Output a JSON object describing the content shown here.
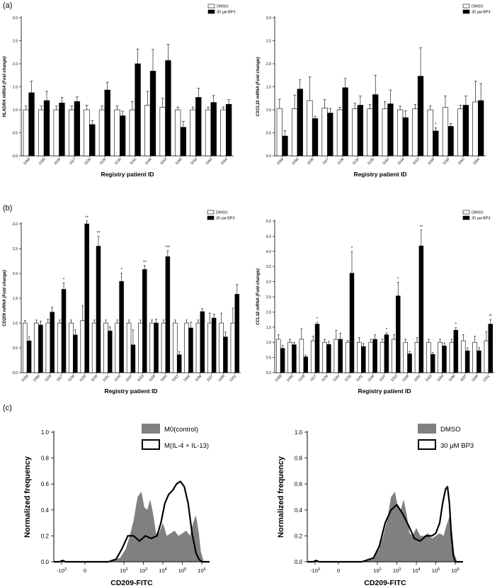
{
  "panel_labels": [
    "(a)",
    "(b)",
    "(c)"
  ],
  "chart_data": [
    {
      "type": "bar",
      "ylabel": "HLADRA mRNA (Fold change)",
      "xlabel": "Registry patient ID",
      "ylim": [
        0,
        3.0
      ],
      "yticks": [
        "0.0",
        "0.5",
        "1.0",
        "1.5",
        "2.0",
        "2.5",
        "3.0"
      ],
      "categories": [
        "1058",
        "1095",
        "1108",
        "1117",
        "1126",
        "1129",
        "1135",
        "1141",
        "1144",
        "1153",
        "1158",
        "1159",
        "1163",
        "1164"
      ],
      "series": [
        {
          "name": "DMSO",
          "color": "#ffffff",
          "values": [
            1.0,
            1.0,
            1.0,
            1.0,
            1.0,
            1.0,
            1.0,
            1.0,
            1.1,
            1.05,
            1.0,
            1.0,
            1.0,
            1.0
          ],
          "errors": [
            0.08,
            0.08,
            0.08,
            0.08,
            0.1,
            0.08,
            0.08,
            0.18,
            0.3,
            0.2,
            0.06,
            0.06,
            0.06,
            0.06
          ]
        },
        {
          "name": "30 μм BP3",
          "color": "#000000",
          "values": [
            1.37,
            1.2,
            1.15,
            1.18,
            0.68,
            1.43,
            0.87,
            2.0,
            1.84,
            2.07,
            0.62,
            1.27,
            1.16,
            1.12
          ],
          "errors": [
            0.25,
            0.2,
            0.12,
            0.1,
            0.08,
            0.17,
            0.1,
            0.32,
            0.47,
            0.35,
            0.13,
            0.2,
            0.15,
            0.1
          ]
        }
      ],
      "annotations": [],
      "legend": "top-right"
    },
    {
      "type": "bar",
      "ylabel": "CXCL10 mRNA (Fold change)",
      "xlabel": "Registry patient ID",
      "ylim": [
        0,
        3.0
      ],
      "yticks": [
        "0.0",
        "0.5",
        "1.0",
        "1.5",
        "2.0",
        "2.5",
        "3.0"
      ],
      "categories": [
        "1058",
        "1095",
        "1108",
        "1117",
        "1126",
        "1129",
        "1135",
        "1141",
        "1144",
        "1153",
        "1158",
        "1159",
        "1163",
        "1164"
      ],
      "series": [
        {
          "name": "DMSO",
          "color": "#ffffff",
          "values": [
            1.03,
            1.02,
            1.2,
            1.04,
            1.0,
            1.02,
            1.02,
            1.02,
            1.0,
            1.02,
            1.0,
            1.05,
            1.02,
            1.17
          ],
          "errors": [
            0.2,
            0.3,
            0.52,
            0.18,
            0.05,
            0.12,
            0.1,
            0.16,
            0.08,
            0.1,
            0.08,
            0.25,
            0.08,
            0.45
          ]
        },
        {
          "name": "30 μм BP3",
          "color": "#000000",
          "values": [
            0.43,
            1.45,
            0.81,
            0.93,
            1.48,
            1.1,
            1.33,
            1.13,
            0.83,
            1.73,
            0.54,
            0.64,
            1.1,
            1.2
          ],
          "errors": [
            0.12,
            0.2,
            0.05,
            0.1,
            0.2,
            0.2,
            0.42,
            0.3,
            0.15,
            0.62,
            0.07,
            0.06,
            0.2,
            0.37
          ]
        }
      ],
      "annotations": [
        {
          "category": "1158",
          "text": "*"
        }
      ],
      "legend": "top-right"
    },
    {
      "type": "bar",
      "ylabel": "CD209 mRNA (Fold change)",
      "xlabel": "Registry patient ID",
      "ylim": [
        0,
        3.0
      ],
      "yticks": [
        "0.0",
        "0.5",
        "1.0",
        "1.5",
        "2.0",
        "2.5",
        "3.0"
      ],
      "categories": [
        "1058",
        "1095",
        "1108",
        "1117",
        "1126",
        "1129",
        "1135",
        "1141",
        "1144",
        "1147",
        "1153",
        "1158",
        "1160",
        "1163",
        "1164",
        "1189",
        "1197",
        "1198",
        "1201"
      ],
      "series": [
        {
          "name": "DMSO",
          "color": "#ffffff",
          "values": [
            1.0,
            1.0,
            1.0,
            1.0,
            1.0,
            1.05,
            1.0,
            1.0,
            1.0,
            1.0,
            1.0,
            1.0,
            1.0,
            1.0,
            1.0,
            1.0,
            1.0,
            1.0,
            1.0
          ],
          "errors": [
            0.05,
            0.06,
            0.08,
            0.06,
            0.06,
            0.3,
            0.06,
            0.06,
            0.06,
            0.06,
            0.06,
            0.06,
            0.06,
            0.06,
            0.06,
            0.06,
            0.2,
            0.2,
            0.3
          ]
        },
        {
          "name": "30 μм BP3",
          "color": "#000000",
          "values": [
            0.64,
            0.96,
            1.22,
            1.68,
            0.76,
            3.0,
            2.55,
            0.84,
            1.84,
            0.56,
            2.08,
            1.0,
            2.34,
            0.36,
            0.9,
            1.23,
            1.1,
            0.72,
            1.58
          ],
          "errors": [
            0.08,
            0.08,
            0.1,
            0.13,
            0.1,
            0.06,
            0.2,
            0.08,
            0.17,
            0.3,
            0.08,
            0.08,
            0.12,
            0.06,
            0.12,
            0.06,
            0.08,
            0.1,
            0.2
          ]
        }
      ],
      "annotations": [
        {
          "category": "1117",
          "text": "*"
        },
        {
          "category": "1129",
          "text": "**"
        },
        {
          "category": "1135",
          "text": "**"
        },
        {
          "category": "1144",
          "text": "*"
        },
        {
          "category": "1153",
          "text": "**"
        },
        {
          "category": "1160",
          "text": "***"
        }
      ],
      "legend": "top-right"
    },
    {
      "type": "bar",
      "ylabel": "CCL18 mRNA (Fold change)",
      "xlabel": "Registry patient ID",
      "ylim": [
        0,
        5.0
      ],
      "yticks": [
        "0.0",
        "0.5",
        "1.0",
        "1.5",
        "2.0",
        "2.5",
        "3.0",
        "3.5",
        "4.0",
        "4.5",
        "5.0"
      ],
      "categories": [
        "1058",
        "1095",
        "1108",
        "1117",
        "1126",
        "1129",
        "1135",
        "1141",
        "1144",
        "1147",
        "1153",
        "1158",
        "1160",
        "1163",
        "1164",
        "1189",
        "1197",
        "1198",
        "1201"
      ],
      "series": [
        {
          "name": "DMSO",
          "color": "#ffffff",
          "values": [
            1.1,
            1.0,
            1.1,
            1.05,
            1.0,
            1.1,
            1.0,
            1.0,
            1.0,
            1.0,
            1.1,
            1.0,
            1.0,
            1.0,
            1.0,
            1.0,
            1.05,
            1.0,
            1.05
          ],
          "errors": [
            0.15,
            0.1,
            0.35,
            0.15,
            0.1,
            0.3,
            0.06,
            0.15,
            0.1,
            0.1,
            0.15,
            0.1,
            0.15,
            0.1,
            0.1,
            0.1,
            0.2,
            0.2,
            0.3
          ]
        },
        {
          "name": "30 μм BP3",
          "color": "#000000",
          "values": [
            0.8,
            0.92,
            0.52,
            1.6,
            0.93,
            1.1,
            3.28,
            0.86,
            1.1,
            1.25,
            2.53,
            0.62,
            4.18,
            0.6,
            0.88,
            1.4,
            0.72,
            0.72,
            1.6
          ],
          "errors": [
            0.1,
            0.08,
            0.06,
            0.06,
            0.1,
            0.2,
            0.72,
            0.1,
            0.15,
            0.06,
            0.45,
            0.08,
            0.52,
            0.06,
            0.1,
            0.08,
            0.1,
            0.1,
            0.15
          ]
        }
      ],
      "annotations": [
        {
          "category": "1117",
          "text": "*"
        },
        {
          "category": "1135",
          "text": "*"
        },
        {
          "category": "1147",
          "text": "*"
        },
        {
          "category": "1153",
          "text": "*"
        },
        {
          "category": "1160",
          "text": "**"
        },
        {
          "category": "1189",
          "text": "*"
        },
        {
          "category": "1201",
          "text": "**"
        }
      ],
      "legend": "top-right"
    },
    {
      "type": "area",
      "ylabel": "Normalized frequency",
      "xlabel": "CD209-FITC",
      "ylim": [
        0,
        1.0
      ],
      "yticks": [
        "0.0",
        "0.2",
        "0.4",
        "0.6",
        "0.8",
        "1.0"
      ],
      "xticks": [
        {
          "value": -1.2,
          "base": "-10",
          "exp": "3"
        },
        {
          "value": 0,
          "base": "0",
          "exp": ""
        },
        {
          "value": 2,
          "base": "10",
          "exp": "2"
        },
        {
          "value": 3,
          "base": "10",
          "exp": "3"
        },
        {
          "value": 4,
          "base": "10",
          "exp": "4"
        },
        {
          "value": 5,
          "base": "10",
          "exp": "5"
        },
        {
          "value": 6,
          "base": "10",
          "exp": "6"
        }
      ],
      "xlim": [
        -1.6,
        6.4
      ],
      "series": [
        {
          "name": "M0(control)",
          "style": "filled",
          "color": "#808080",
          "x": [
            -1.6,
            -1.3,
            -1.15,
            -1.0,
            0,
            1.2,
            1.8,
            2.1,
            2.3,
            2.5,
            2.7,
            2.9,
            3.05,
            3.2,
            3.35,
            3.5,
            3.65,
            3.8,
            4.0,
            4.2,
            4.4,
            4.6,
            4.8,
            5.0,
            5.2,
            5.4,
            5.55,
            5.7,
            5.85,
            5.95,
            6.1,
            6.3
          ],
          "y": [
            0,
            0,
            0.01,
            0,
            0,
            0,
            0.03,
            0.1,
            0.2,
            0.32,
            0.5,
            0.54,
            0.42,
            0.4,
            0.48,
            0.37,
            0.22,
            0.22,
            0.3,
            0.2,
            0.22,
            0.24,
            0.2,
            0.22,
            0.24,
            0.2,
            0.3,
            0.36,
            0.22,
            0.08,
            0,
            0
          ]
        },
        {
          "name": "M(IL-4 + IL-13)",
          "style": "line",
          "color": "#000000",
          "x": [
            -1.6,
            -1.3,
            -1.15,
            -1.0,
            0,
            1.2,
            1.6,
            1.9,
            2.2,
            2.5,
            2.8,
            3.1,
            3.4,
            3.7,
            3.9,
            4.1,
            4.3,
            4.5,
            4.7,
            4.9,
            5.1,
            5.3,
            5.5,
            5.7,
            5.85,
            6.0,
            6.2,
            6.4
          ],
          "y": [
            0,
            0,
            0.01,
            0,
            0,
            0,
            0.02,
            0.1,
            0.2,
            0.2,
            0.16,
            0.2,
            0.18,
            0.2,
            0.3,
            0.45,
            0.52,
            0.55,
            0.6,
            0.62,
            0.58,
            0.45,
            0.22,
            0.07,
            0.02,
            0,
            0,
            0
          ]
        }
      ],
      "legend": "top-right"
    },
    {
      "type": "area",
      "ylabel": "Normalized frequency",
      "xlabel": "CD209-FITC",
      "ylim": [
        0,
        1.0
      ],
      "yticks": [
        "0.0",
        "0.2",
        "0.4",
        "0.6",
        "0.8",
        "1.0"
      ],
      "xticks": [
        {
          "value": -1.2,
          "base": "-10",
          "exp": "3"
        },
        {
          "value": 0,
          "base": "0",
          "exp": ""
        },
        {
          "value": 2,
          "base": "10",
          "exp": "2"
        },
        {
          "value": 3,
          "base": "10",
          "exp": "3"
        },
        {
          "value": 4,
          "base": "10",
          "exp": "4"
        },
        {
          "value": 5,
          "base": "10",
          "exp": "5"
        },
        {
          "value": 6,
          "base": "10",
          "exp": "6"
        }
      ],
      "xlim": [
        -1.6,
        6.4
      ],
      "series": [
        {
          "name": "DMSO",
          "style": "filled",
          "color": "#808080",
          "x": [
            -1.6,
            -1.3,
            -1.15,
            -1.0,
            0,
            1.2,
            1.8,
            2.1,
            2.3,
            2.5,
            2.7,
            2.9,
            3.05,
            3.2,
            3.35,
            3.5,
            3.65,
            3.8,
            4.0,
            4.2,
            4.4,
            4.6,
            4.8,
            5.0,
            5.2,
            5.4,
            5.55,
            5.7,
            5.85,
            5.95,
            6.1,
            6.3
          ],
          "y": [
            0,
            0,
            0.01,
            0,
            0,
            0,
            0.03,
            0.1,
            0.2,
            0.32,
            0.5,
            0.54,
            0.42,
            0.4,
            0.48,
            0.37,
            0.22,
            0.2,
            0.26,
            0.2,
            0.2,
            0.22,
            0.18,
            0.2,
            0.22,
            0.2,
            0.28,
            0.35,
            0.22,
            0.06,
            0,
            0
          ]
        },
        {
          "name": "30 μM BP3",
          "style": "line",
          "color": "#000000",
          "x": [
            -1.6,
            -1.3,
            -1.15,
            -1.0,
            0,
            1.2,
            1.8,
            2.1,
            2.4,
            2.7,
            3.0,
            3.3,
            3.6,
            3.9,
            4.2,
            4.5,
            4.8,
            5.0,
            5.2,
            5.35,
            5.5,
            5.6,
            5.7,
            5.8,
            5.9,
            6.0,
            6.2,
            6.4
          ],
          "y": [
            0,
            0,
            0.01,
            0,
            0,
            0,
            0.03,
            0.12,
            0.3,
            0.4,
            0.44,
            0.37,
            0.28,
            0.18,
            0.16,
            0.2,
            0.2,
            0.22,
            0.3,
            0.45,
            0.56,
            0.58,
            0.45,
            0.2,
            0.05,
            0,
            0,
            0
          ]
        }
      ],
      "legend": "top-right"
    }
  ]
}
